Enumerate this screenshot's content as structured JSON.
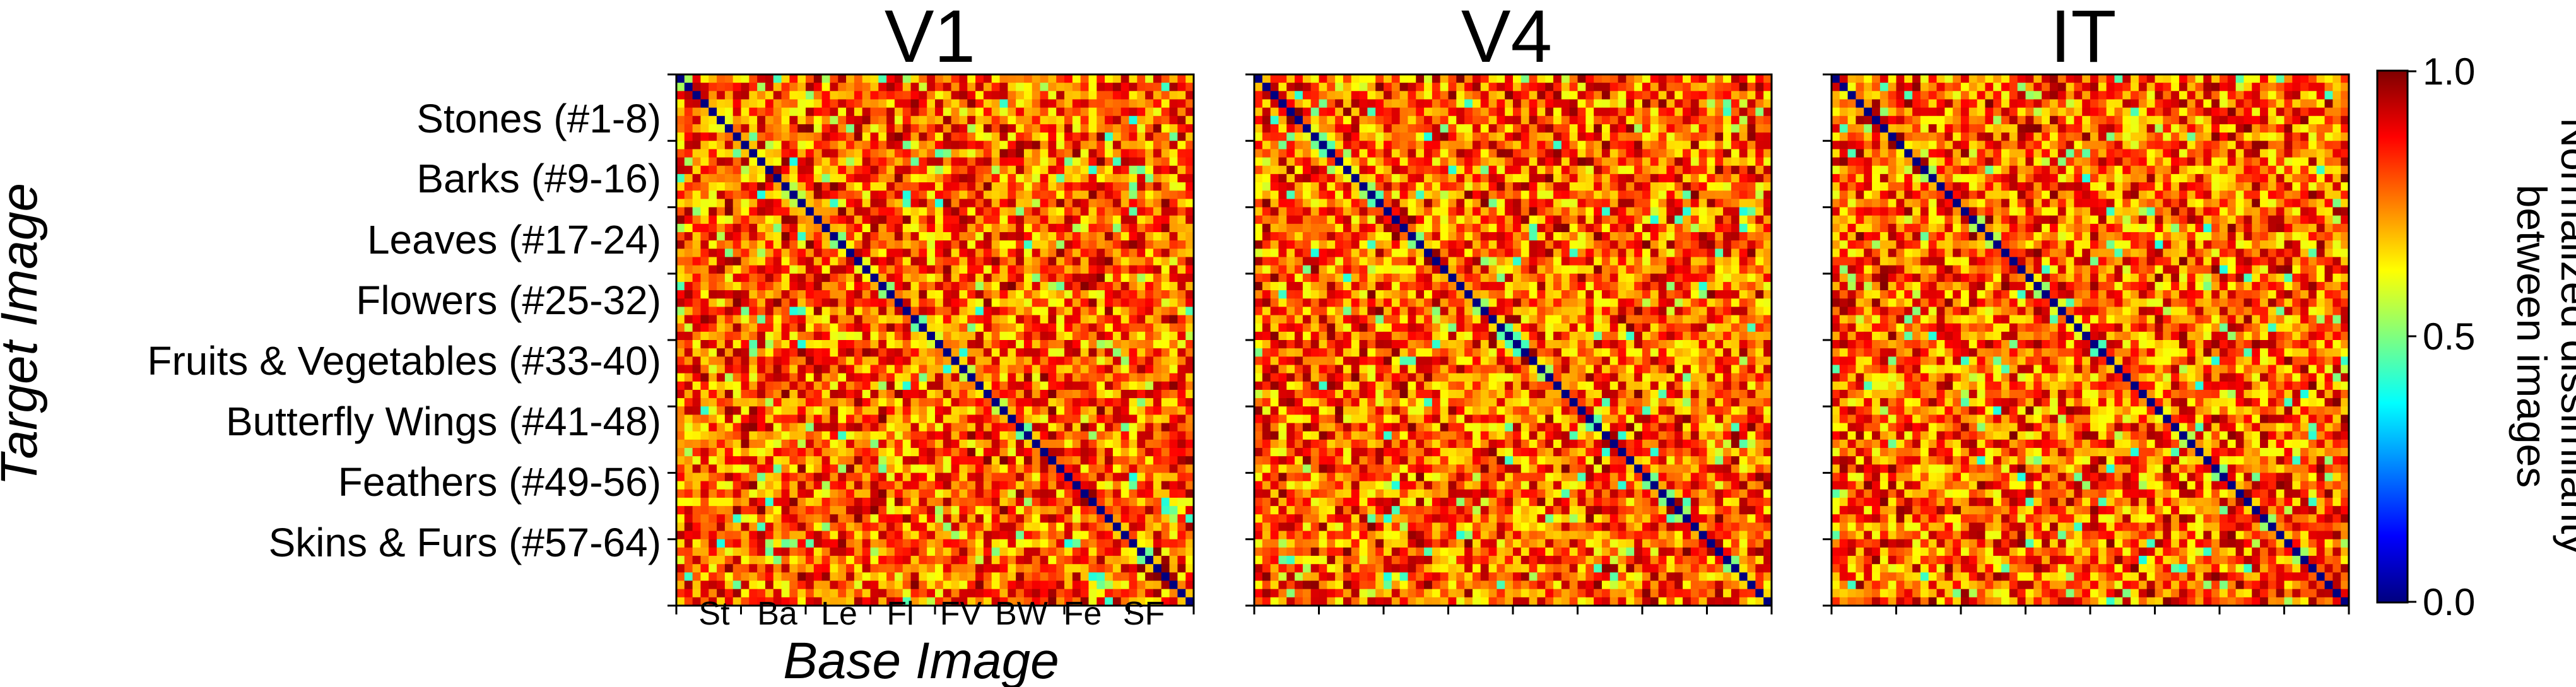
{
  "chart_data": {
    "type": "heatmap",
    "panels": [
      {
        "title": "V1",
        "size": 64,
        "seed": 11,
        "tick_labels_shown": true
      },
      {
        "title": "V4",
        "size": 64,
        "seed": 23,
        "tick_labels_shown": false
      },
      {
        "title": "IT",
        "size": 64,
        "seed": 37,
        "tick_labels_shown": false
      }
    ],
    "ylabel": "Target Image",
    "xlabel": "Base Image",
    "row_categories": [
      "Stones (#1-8)",
      "Barks (#9-16)",
      "Leaves (#17-24)",
      "Flowers (#25-32)",
      "Fruits & Vegetables (#33-40)",
      "Butterfly Wings (#41-48)",
      "Feathers (#49-56)",
      "Skins & Furs (#57-64)"
    ],
    "col_categories": [
      "St",
      "Ba",
      "Le",
      "Fl",
      "FV",
      "BW",
      "Fe",
      "SF"
    ],
    "colorbar": {
      "label_line1": "Normalized dissimilarity",
      "label_line2": "between images",
      "min_label": "0.0",
      "mid_label": "0.5",
      "max_label": "1.0",
      "range": [
        0.0,
        1.0
      ],
      "colormap": "jet",
      "colors": [
        "#00007f",
        "#0000ff",
        "#007fff",
        "#00ffff",
        "#7fff7f",
        "#ffff00",
        "#ff7f00",
        "#ff0000",
        "#7f0000"
      ]
    },
    "diagonal_value": 0.0,
    "typical_offdiagonal_range": [
      0.6,
      0.95
    ]
  }
}
